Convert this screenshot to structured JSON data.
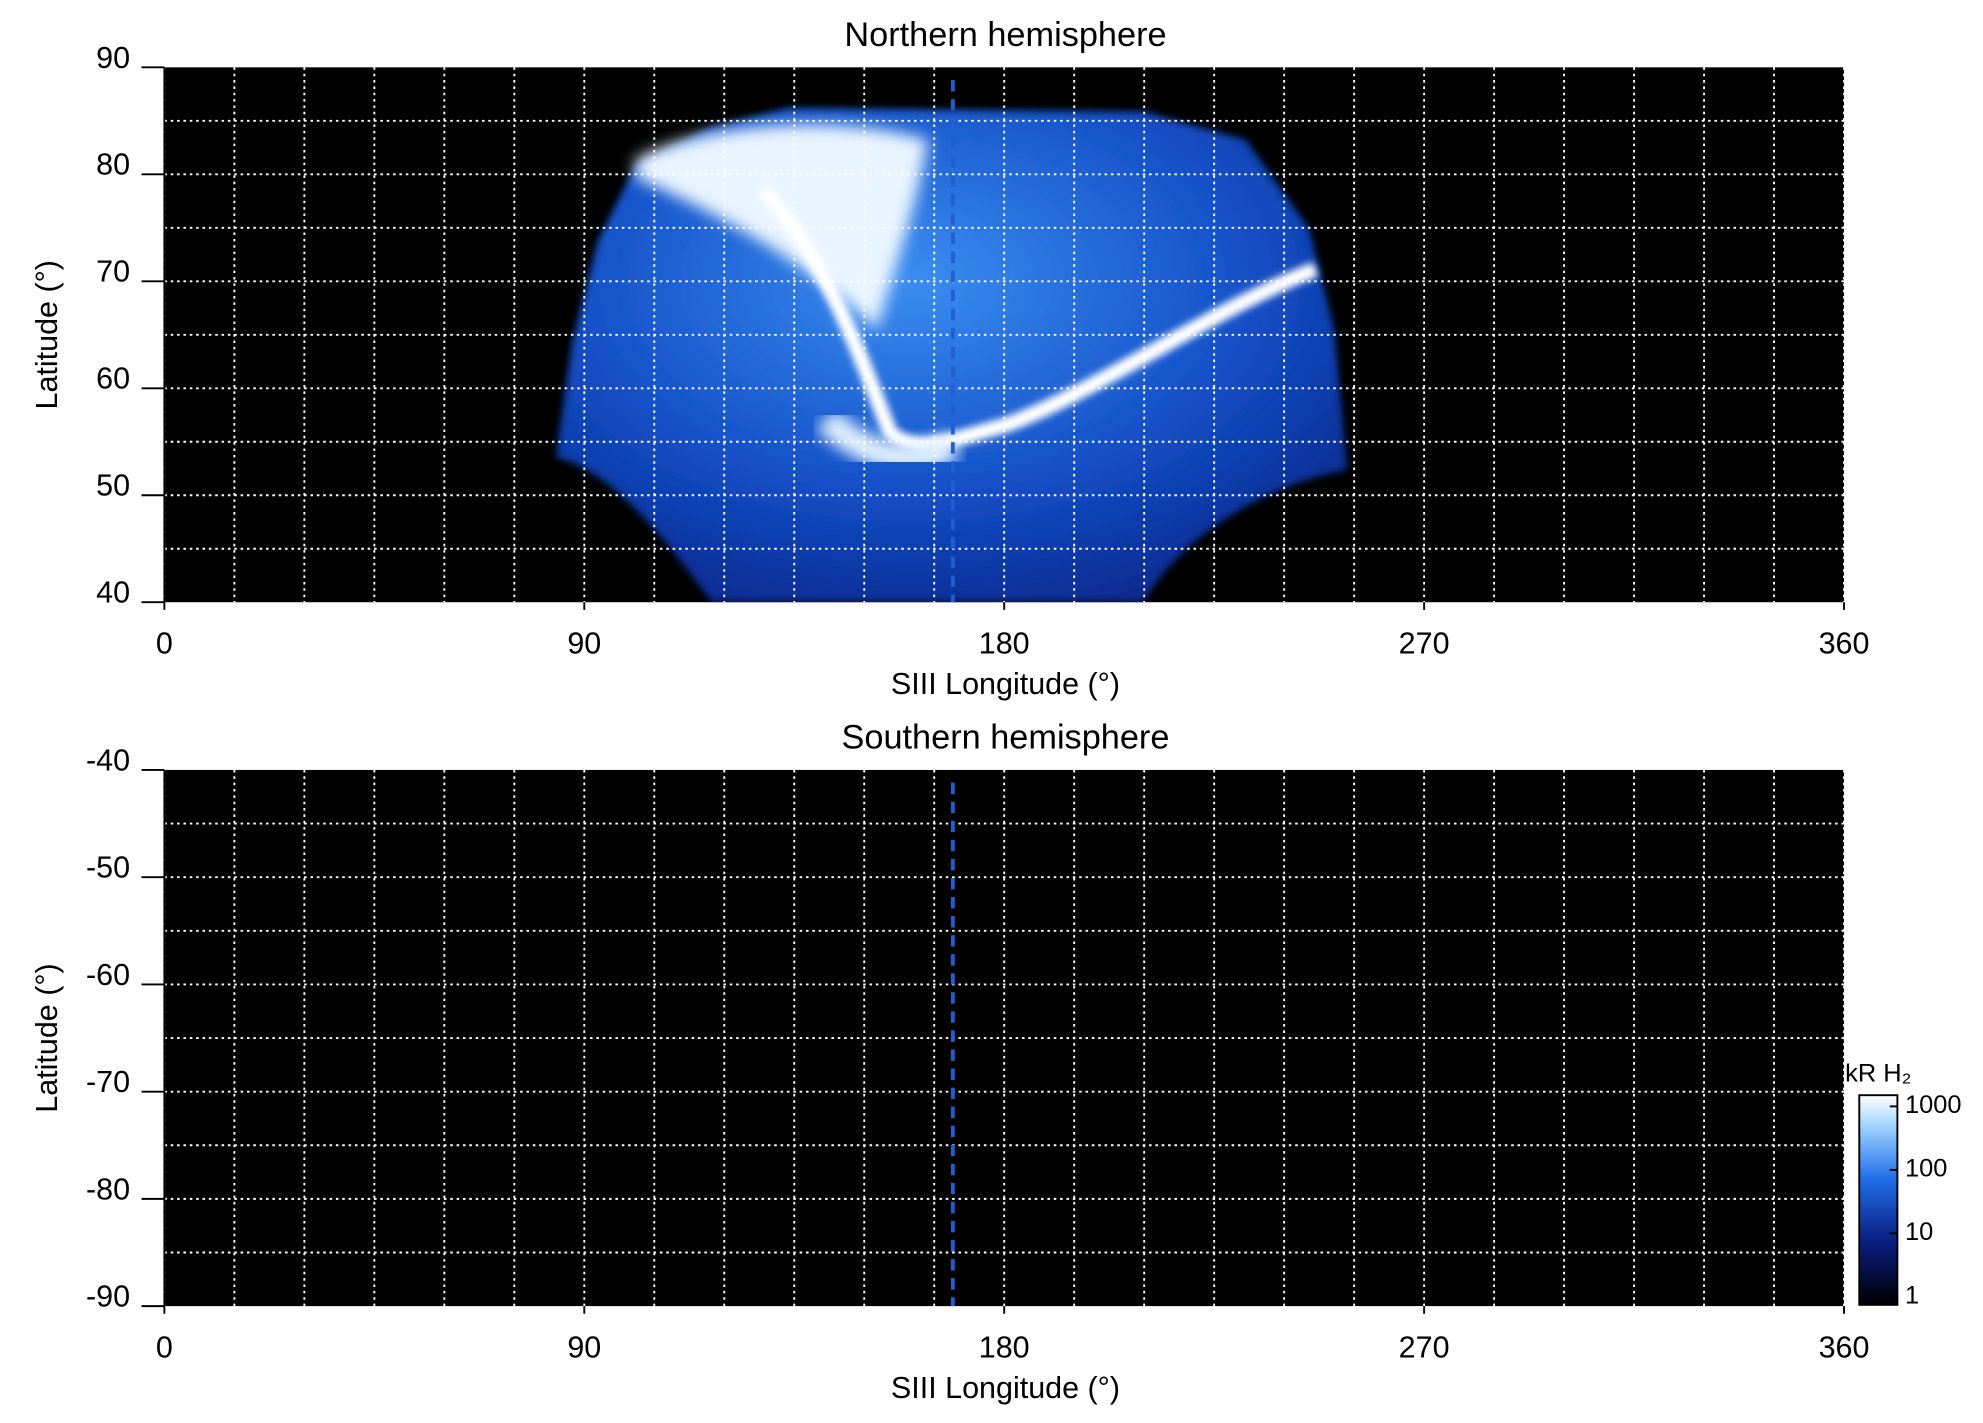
{
  "chart_data": [
    {
      "type": "heatmap",
      "title": "Northern hemisphere",
      "x_label": "SIII Longitude (°)",
      "y_label": "Latitude (°)",
      "xlim": [
        0,
        360
      ],
      "xticks": [
        0,
        90,
        180,
        270,
        360
      ],
      "ylim": [
        40,
        90
      ],
      "yticks": [
        40,
        50,
        60,
        70,
        80,
        90
      ],
      "xgrid": [
        0,
        15,
        30,
        45,
        60,
        75,
        90,
        105,
        120,
        135,
        150,
        165,
        180,
        195,
        210,
        225,
        240,
        255,
        270,
        285,
        300,
        315,
        330,
        345,
        360
      ],
      "ygrid": [
        45,
        50,
        55,
        60,
        65,
        70,
        75,
        80,
        85
      ],
      "vline_x": 169,
      "vline_color": "#1f5fd0"
    },
    {
      "type": "heatmap",
      "title": "Southern hemisphere",
      "x_label": "SIII Longitude (°)",
      "y_label": "Latitude (°)",
      "xlim": [
        0,
        360
      ],
      "xticks": [
        0,
        90,
        180,
        270,
        360
      ],
      "ylim": [
        -90,
        -40
      ],
      "yticks": [
        -90,
        -80,
        -70,
        -60,
        -50,
        -40
      ],
      "xgrid": [
        0,
        15,
        30,
        45,
        60,
        75,
        90,
        105,
        120,
        135,
        150,
        165,
        180,
        195,
        210,
        225,
        240,
        255,
        270,
        285,
        300,
        315,
        330,
        345,
        360
      ],
      "ygrid": [
        -85,
        -80,
        -75,
        -70,
        -65,
        -60,
        -55,
        -50,
        -45
      ],
      "vline_x": 169,
      "vline_color": "#1f5fd0",
      "colorbar": {
        "label": "kR H₂",
        "log": true,
        "lim": [
          0.75,
          1500
        ],
        "ticks": [
          1,
          10,
          100,
          1000
        ]
      }
    }
  ]
}
